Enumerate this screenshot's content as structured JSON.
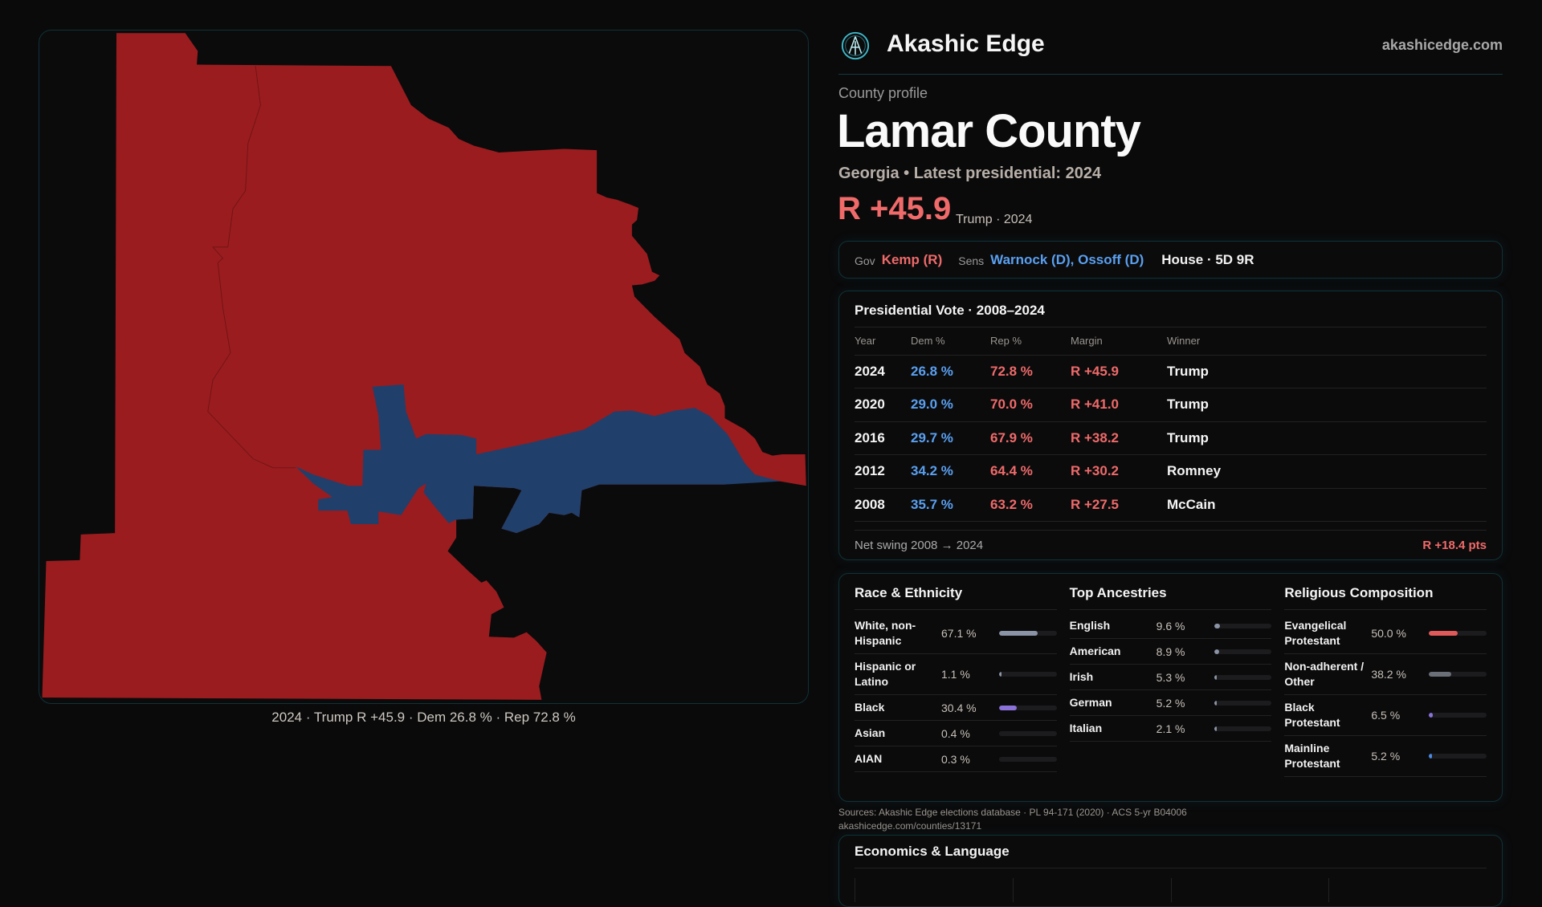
{
  "brand": {
    "name": "Akashic Edge",
    "site": "akashicedge.com"
  },
  "profile": {
    "eyebrow": "County profile",
    "title": "Lamar County",
    "subtitle": "Georgia • Latest presidential: 2024",
    "margin": "R +45.9",
    "margin_sub": "Trump · 2024"
  },
  "officials": {
    "gov_label": "Gov",
    "gov": "Kemp (R)",
    "sens_label": "Sens",
    "sens": "Warnock (D), Ossoff (D)",
    "house": "House · 5D 9R"
  },
  "map": {
    "caption": "2024 · Trump R +45.9 · Dem 26.8 % · Rep 72.8 %",
    "colors": {
      "rep": "#9a1c1f",
      "dem": "#213f6b"
    }
  },
  "presidential": {
    "title": "Presidential Vote · 2008–2024",
    "headers": [
      "Year",
      "Dem %",
      "Rep %",
      "Margin",
      "Winner"
    ],
    "rows": [
      [
        "2024",
        "26.8 %",
        "72.8 %",
        "R +45.9",
        "Trump"
      ],
      [
        "2020",
        "29.0 %",
        "70.0 %",
        "R +41.0",
        "Trump"
      ],
      [
        "2016",
        "29.7 %",
        "67.9 %",
        "R +38.2",
        "Trump"
      ],
      [
        "2012",
        "34.2 %",
        "64.4 %",
        "R +30.2",
        "Romney"
      ],
      [
        "2008",
        "35.7 %",
        "63.2 %",
        "R +27.5",
        "McCain"
      ]
    ],
    "swing_label": "Net swing 2008 → 2024",
    "swing_value": "R +18.4 pts"
  },
  "demographics": [
    {
      "title": "Race & Ethnicity",
      "items": [
        {
          "label": "White, non-Hispanic",
          "value": "67.1 %",
          "pct": 67.1,
          "color": "#8a94a6"
        },
        {
          "label": "Hispanic or Latino",
          "value": "1.1 %",
          "pct": 1.1,
          "color": "#8a94a6"
        },
        {
          "label": "Black",
          "value": "30.4 %",
          "pct": 30.4,
          "color": "#8b72d8"
        },
        {
          "label": "Asian",
          "value": "0.4 %",
          "pct": 0.4,
          "color": "#1c1c1f"
        },
        {
          "label": "AIAN",
          "value": "0.3 %",
          "pct": 0.3,
          "color": "#1c1c1f"
        }
      ]
    },
    {
      "title": "Top Ancestries",
      "items": [
        {
          "label": "English",
          "value": "9.6 %",
          "pct": 9.6,
          "color": "#8a94a6"
        },
        {
          "label": "American",
          "value": "8.9 %",
          "pct": 8.9,
          "color": "#8a94a6"
        },
        {
          "label": "Irish",
          "value": "5.3 %",
          "pct": 5.3,
          "color": "#8a94a6"
        },
        {
          "label": "German",
          "value": "5.2 %",
          "pct": 5.2,
          "color": "#8a94a6"
        },
        {
          "label": "Italian",
          "value": "2.1 %",
          "pct": 2.1,
          "color": "#8a94a6"
        }
      ]
    },
    {
      "title": "Religious Composition",
      "items": [
        {
          "label": "Evangelical Protestant",
          "value": "50.0 %",
          "pct": 50.0,
          "color": "#e05a5a"
        },
        {
          "label": "Non-adherent / Other",
          "value": "38.2 %",
          "pct": 38.2,
          "color": "#6b6f78"
        },
        {
          "label": "Black Protestant",
          "value": "6.5 %",
          "pct": 6.5,
          "color": "#8b72d8"
        },
        {
          "label": "Mainline Protestant",
          "value": "5.2 %",
          "pct": 5.2,
          "color": "#4a8ae0"
        }
      ]
    }
  ],
  "footer": {
    "sources": "Sources: Akashic Edge elections database · PL 94-171 (2020) · ACS 5-yr B04006",
    "url": "akashicedge.com/counties/13171"
  },
  "economics": {
    "title": "Economics & Language"
  }
}
